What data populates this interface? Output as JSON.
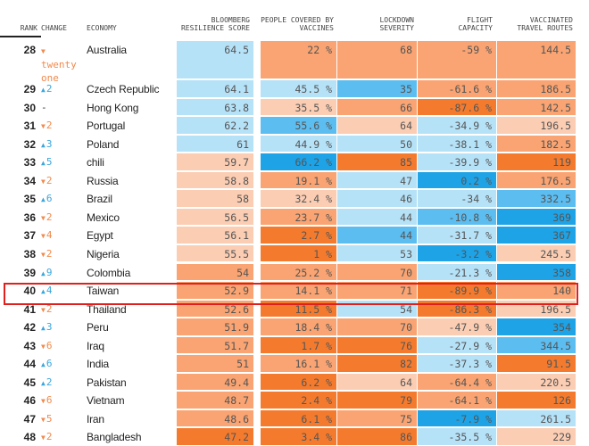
{
  "chart_data": {
    "type": "table",
    "columns": [
      "RANK",
      "CHANGE",
      "ECONOMY",
      "BLOOMBERG RESILIENCE SCORE",
      "PEOPLE COVERED BY VACCINES",
      "LOCKDOWN SEVERITY",
      "FLIGHT CAPACITY",
      "VACCINATED TRAVEL ROUTES"
    ],
    "highlighted_rank": 40,
    "colors": {
      "L": "#b6e2f8",
      "M": "#5cbdf0",
      "B": "#1ea3e6",
      "P": "#fbcdb3",
      "O": "#f9a472",
      "D": "#f47b2e"
    },
    "rows": [
      {
        "rank": "28",
        "dir": "down",
        "change": "twenty one",
        "economy": "Australia",
        "cells": [
          "64.5",
          "22 %",
          "68",
          "-59 %",
          "144.5"
        ],
        "shade": [
          "L",
          "O",
          "O",
          "O",
          "O"
        ]
      },
      {
        "rank": "29",
        "dir": "up",
        "change": "2",
        "economy": "Czech Republic",
        "cells": [
          "64.1",
          "45.5 %",
          "35",
          "-61.6 %",
          "186.5"
        ],
        "shade": [
          "L",
          "L",
          "M",
          "O",
          "O"
        ]
      },
      {
        "rank": "30",
        "dir": "none",
        "change": "-",
        "economy": "Hong Kong",
        "cells": [
          "63.8",
          "35.5 %",
          "66",
          "-87.6 %",
          "142.5"
        ],
        "shade": [
          "L",
          "P",
          "O",
          "D",
          "O"
        ]
      },
      {
        "rank": "31",
        "dir": "down",
        "change": "2",
        "economy": "Portugal",
        "cells": [
          "62.2",
          "55.6 %",
          "64",
          "-34.9 %",
          "196.5"
        ],
        "shade": [
          "L",
          "M",
          "P",
          "L",
          "P"
        ]
      },
      {
        "rank": "32",
        "dir": "up",
        "change": "3",
        "economy": "Poland",
        "cells": [
          "61",
          "44.9 %",
          "50",
          "-38.1 %",
          "182.5"
        ],
        "shade": [
          "L",
          "L",
          "L",
          "L",
          "O"
        ]
      },
      {
        "rank": "33",
        "dir": "up",
        "change": "5",
        "economy": "chili",
        "cells": [
          "59.7",
          "66.2 %",
          "85",
          "-39.9 %",
          "119"
        ],
        "shade": [
          "P",
          "B",
          "D",
          "L",
          "D"
        ]
      },
      {
        "rank": "34",
        "dir": "down",
        "change": "2",
        "economy": "Russia",
        "cells": [
          "58.8",
          "19.1 %",
          "47",
          "0.2 %",
          "176.5"
        ],
        "shade": [
          "P",
          "O",
          "L",
          "B",
          "O"
        ]
      },
      {
        "rank": "35",
        "dir": "up",
        "change": "6",
        "economy": "Brazil",
        "cells": [
          "58",
          "32.4 %",
          "46",
          "-34 %",
          "332.5"
        ],
        "shade": [
          "P",
          "P",
          "L",
          "L",
          "M"
        ]
      },
      {
        "rank": "36",
        "dir": "down",
        "change": "2",
        "economy": "Mexico",
        "cells": [
          "56.5",
          "23.7 %",
          "44",
          "-10.8 %",
          "369"
        ],
        "shade": [
          "P",
          "O",
          "L",
          "M",
          "B"
        ]
      },
      {
        "rank": "37",
        "dir": "down",
        "change": "4",
        "economy": "Egypt",
        "cells": [
          "56.1",
          "2.7 %",
          "44",
          "-31.7 %",
          "367"
        ],
        "shade": [
          "P",
          "D",
          "M",
          "L",
          "B"
        ]
      },
      {
        "rank": "38",
        "dir": "down",
        "change": "2",
        "economy": "Nigeria",
        "cells": [
          "55.5",
          "1 %",
          "53",
          "-3.2 %",
          "245.5"
        ],
        "shade": [
          "P",
          "D",
          "L",
          "B",
          "P"
        ]
      },
      {
        "rank": "39",
        "dir": "up",
        "change": "9",
        "economy": "Colombia",
        "cells": [
          "54",
          "25.2 %",
          "70",
          "-21.3 %",
          "358"
        ],
        "shade": [
          "O",
          "O",
          "O",
          "L",
          "B"
        ]
      },
      {
        "rank": "40",
        "dir": "up",
        "change": "4",
        "economy": "Taiwan",
        "cells": [
          "52.9",
          "14.1 %",
          "71",
          "-89.9 %",
          "140"
        ],
        "shade": [
          "O",
          "O",
          "O",
          "D",
          "O"
        ]
      },
      {
        "rank": "41",
        "dir": "down",
        "change": "2",
        "economy": "Thailand",
        "cells": [
          "52.6",
          "11.5 %",
          "54",
          "-86.3 %",
          "196.5"
        ],
        "shade": [
          "O",
          "D",
          "L",
          "D",
          "P"
        ]
      },
      {
        "rank": "42",
        "dir": "up",
        "change": "3",
        "economy": "Peru",
        "cells": [
          "51.9",
          "18.4 %",
          "70",
          "-47.9 %",
          "354"
        ],
        "shade": [
          "O",
          "O",
          "O",
          "P",
          "B"
        ]
      },
      {
        "rank": "43",
        "dir": "down",
        "change": "6",
        "economy": "Iraq",
        "cells": [
          "51.7",
          "1.7 %",
          "76",
          "-27.9 %",
          "344.5"
        ],
        "shade": [
          "O",
          "D",
          "D",
          "L",
          "M"
        ]
      },
      {
        "rank": "44",
        "dir": "up",
        "change": "6",
        "economy": "India",
        "cells": [
          "51",
          "16.1 %",
          "82",
          "-37.3 %",
          "91.5"
        ],
        "shade": [
          "O",
          "O",
          "D",
          "L",
          "D"
        ]
      },
      {
        "rank": "45",
        "dir": "up",
        "change": "2",
        "economy": "Pakistan",
        "cells": [
          "49.4",
          "6.2 %",
          "64",
          "-64.4 %",
          "220.5"
        ],
        "shade": [
          "O",
          "D",
          "P",
          "O",
          "P"
        ]
      },
      {
        "rank": "46",
        "dir": "down",
        "change": "6",
        "economy": "Vietnam",
        "cells": [
          "48.7",
          "2.4 %",
          "79",
          "-64.1 %",
          "126"
        ],
        "shade": [
          "O",
          "D",
          "D",
          "O",
          "D"
        ]
      },
      {
        "rank": "47",
        "dir": "down",
        "change": "5",
        "economy": "Iran",
        "cells": [
          "48.6",
          "6.1 %",
          "75",
          "-7.9 %",
          "261.5"
        ],
        "shade": [
          "O",
          "D",
          "O",
          "B",
          "L"
        ]
      },
      {
        "rank": "48",
        "dir": "down",
        "change": "2",
        "economy": "Bangladesh",
        "cells": [
          "47.2",
          "3.4 %",
          "86",
          "-35.5 %",
          "229"
        ],
        "shade": [
          "D",
          "D",
          "D",
          "L",
          "P"
        ]
      }
    ]
  }
}
